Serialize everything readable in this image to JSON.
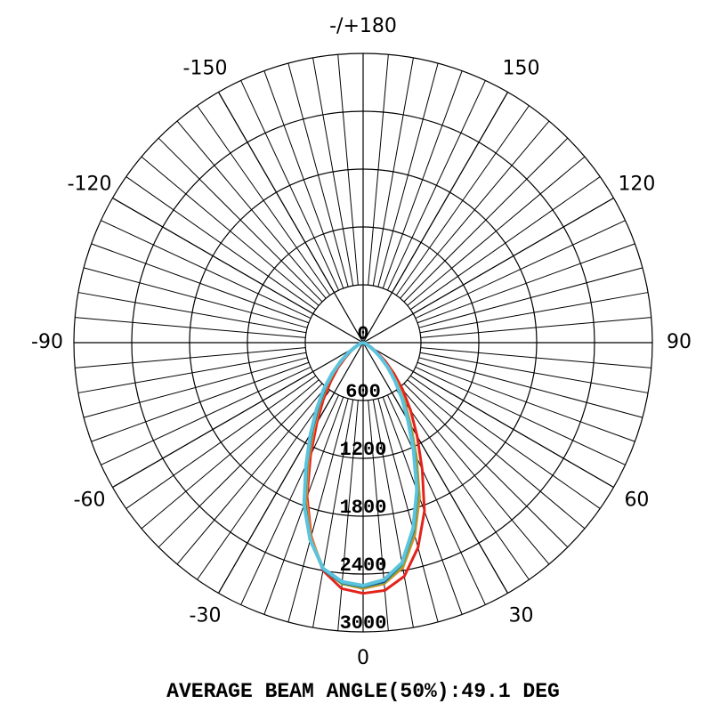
{
  "chart_data": {
    "type": "polar",
    "caption": "AVERAGE BEAM ANGLE(50%):49.1 DEG",
    "x": [
      -90,
      -85,
      -80,
      -75,
      -70,
      -65,
      -60,
      -55,
      -50,
      -45,
      -40,
      -35,
      -30,
      -25,
      -20,
      -15,
      -10,
      -5,
      0,
      5,
      10,
      15,
      20,
      25,
      30,
      35,
      40,
      45,
      50,
      55,
      60,
      65,
      70,
      75,
      80,
      85,
      90
    ],
    "xlim": [
      -180,
      180
    ],
    "xticks": [
      0,
      30,
      60,
      90,
      120,
      150,
      {
        "value": 180,
        "label": "-/+180"
      },
      -150,
      -120,
      -90,
      -60,
      -30
    ],
    "ylim": [
      0,
      3000
    ],
    "yticks": [
      0,
      600,
      1200,
      1800,
      2400,
      3000
    ],
    "grid": true,
    "series": [
      {
        "color": "#e3231c",
        "values": [
          0,
          0,
          5,
          10,
          20,
          45,
          80,
          150,
          240,
          370,
          520,
          720,
          960,
          1290,
          1700,
          2080,
          2400,
          2560,
          2600,
          2580,
          2460,
          2200,
          1860,
          1450,
          1120,
          860,
          640,
          450,
          300,
          180,
          100,
          55,
          25,
          10,
          5,
          0,
          0
        ]
      },
      {
        "color": "#e8872b",
        "values": [
          0,
          0,
          5,
          10,
          25,
          50,
          90,
          170,
          270,
          420,
          580,
          780,
          1020,
          1340,
          1730,
          2090,
          2380,
          2510,
          2550,
          2510,
          2370,
          2070,
          1710,
          1310,
          990,
          750,
          550,
          390,
          250,
          150,
          85,
          45,
          20,
          10,
          5,
          0,
          0
        ]
      },
      {
        "color": "#78b53a",
        "values": [
          0,
          0,
          5,
          10,
          25,
          55,
          95,
          170,
          280,
          430,
          600,
          800,
          1050,
          1370,
          1760,
          2110,
          2390,
          2510,
          2540,
          2500,
          2350,
          2040,
          1680,
          1290,
          970,
          730,
          530,
          380,
          240,
          150,
          80,
          45,
          20,
          10,
          5,
          0,
          0
        ]
      },
      {
        "color": "#1f4e9c",
        "values": [
          0,
          0,
          5,
          10,
          25,
          55,
          100,
          180,
          290,
          440,
          610,
          810,
          1060,
          1380,
          1770,
          2110,
          2390,
          2500,
          2530,
          2490,
          2330,
          2020,
          1650,
          1260,
          950,
          710,
          520,
          370,
          230,
          140,
          80,
          40,
          20,
          10,
          5,
          0,
          0
        ]
      },
      {
        "color": "#5cc3dc",
        "values": [
          0,
          0,
          5,
          15,
          30,
          60,
          110,
          200,
          310,
          460,
          640,
          840,
          1090,
          1400,
          1790,
          2120,
          2380,
          2490,
          2520,
          2470,
          2320,
          2000,
          1630,
          1240,
          930,
          700,
          510,
          360,
          230,
          140,
          75,
          40,
          20,
          10,
          5,
          0,
          0
        ]
      }
    ]
  }
}
